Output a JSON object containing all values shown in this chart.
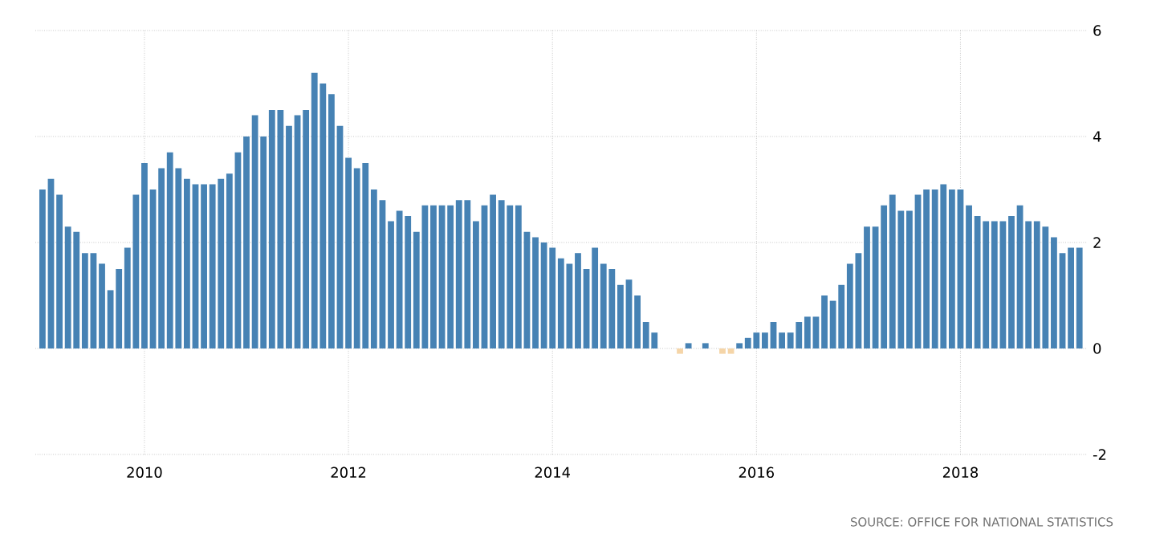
{
  "chart_data": {
    "type": "bar",
    "x": [
      "2009-01",
      "2009-02",
      "2009-03",
      "2009-04",
      "2009-05",
      "2009-06",
      "2009-07",
      "2009-08",
      "2009-09",
      "2009-10",
      "2009-11",
      "2009-12",
      "2010-01",
      "2010-02",
      "2010-03",
      "2010-04",
      "2010-05",
      "2010-06",
      "2010-07",
      "2010-08",
      "2010-09",
      "2010-10",
      "2010-11",
      "2010-12",
      "2011-01",
      "2011-02",
      "2011-03",
      "2011-04",
      "2011-05",
      "2011-06",
      "2011-07",
      "2011-08",
      "2011-09",
      "2011-10",
      "2011-11",
      "2011-12",
      "2012-01",
      "2012-02",
      "2012-03",
      "2012-04",
      "2012-05",
      "2012-06",
      "2012-07",
      "2012-08",
      "2012-09",
      "2012-10",
      "2012-11",
      "2012-12",
      "2013-01",
      "2013-02",
      "2013-03",
      "2013-04",
      "2013-05",
      "2013-06",
      "2013-07",
      "2013-08",
      "2013-09",
      "2013-10",
      "2013-11",
      "2013-12",
      "2014-01",
      "2014-02",
      "2014-03",
      "2014-04",
      "2014-05",
      "2014-06",
      "2014-07",
      "2014-08",
      "2014-09",
      "2014-10",
      "2014-11",
      "2014-12",
      "2015-01",
      "2015-02",
      "2015-03",
      "2015-04",
      "2015-05",
      "2015-06",
      "2015-07",
      "2015-08",
      "2015-09",
      "2015-10",
      "2015-11",
      "2015-12",
      "2016-01",
      "2016-02",
      "2016-03",
      "2016-04",
      "2016-05",
      "2016-06",
      "2016-07",
      "2016-08",
      "2016-09",
      "2016-10",
      "2016-11",
      "2016-12",
      "2017-01",
      "2017-02",
      "2017-03",
      "2017-04",
      "2017-05",
      "2017-06",
      "2017-07",
      "2017-08",
      "2017-09",
      "2017-10",
      "2017-11",
      "2017-12",
      "2018-01",
      "2018-02",
      "2018-03",
      "2018-04",
      "2018-05",
      "2018-06",
      "2018-07",
      "2018-08",
      "2018-09",
      "2018-10",
      "2018-11",
      "2018-12",
      "2019-01",
      "2019-02",
      "2019-03"
    ],
    "values": [
      3.0,
      3.2,
      2.9,
      2.3,
      2.2,
      1.8,
      1.8,
      1.6,
      1.1,
      1.5,
      1.9,
      2.9,
      3.5,
      3.0,
      3.4,
      3.7,
      3.4,
      3.2,
      3.1,
      3.1,
      3.1,
      3.2,
      3.3,
      3.7,
      4.0,
      4.4,
      4.0,
      4.5,
      4.5,
      4.2,
      4.4,
      4.5,
      5.2,
      5.0,
      4.8,
      4.2,
      3.6,
      3.4,
      3.5,
      3.0,
      2.8,
      2.4,
      2.6,
      2.5,
      2.2,
      2.7,
      2.7,
      2.7,
      2.7,
      2.8,
      2.8,
      2.4,
      2.7,
      2.9,
      2.8,
      2.7,
      2.7,
      2.2,
      2.1,
      2.0,
      1.9,
      1.7,
      1.6,
      1.8,
      1.5,
      1.9,
      1.6,
      1.5,
      1.2,
      1.3,
      1.0,
      0.5,
      0.3,
      0.0,
      0.0,
      -0.1,
      0.1,
      0.0,
      0.1,
      0.0,
      -0.1,
      -0.1,
      0.1,
      0.2,
      0.3,
      0.3,
      0.5,
      0.3,
      0.3,
      0.5,
      0.6,
      0.6,
      1.0,
      0.9,
      1.2,
      1.6,
      1.8,
      2.3,
      2.3,
      2.7,
      2.9,
      2.6,
      2.6,
      2.9,
      3.0,
      3.0,
      3.1,
      3.0,
      3.0,
      2.7,
      2.5,
      2.4,
      2.4,
      2.4,
      2.5,
      2.7,
      2.4,
      2.4,
      2.3,
      2.1,
      1.8,
      1.9,
      1.9
    ],
    "colors": [
      "#4682b4",
      "#4682b4",
      "#4682b4",
      "#4682b4",
      "#4682b4",
      "#4682b4",
      "#4682b4",
      "#4682b4",
      "#4682b4",
      "#4682b4",
      "#4682b4",
      "#4682b4",
      "#4682b4",
      "#4682b4",
      "#4682b4",
      "#4682b4",
      "#4682b4",
      "#4682b4",
      "#4682b4",
      "#4682b4",
      "#4682b4",
      "#4682b4",
      "#4682b4",
      "#4682b4",
      "#4682b4",
      "#4682b4",
      "#4682b4",
      "#4682b4",
      "#4682b4",
      "#4682b4",
      "#4682b4",
      "#4682b4",
      "#4682b4",
      "#4682b4",
      "#4682b4",
      "#4682b4",
      "#4682b4",
      "#4682b4",
      "#4682b4",
      "#4682b4",
      "#4682b4",
      "#4682b4",
      "#4682b4",
      "#4682b4",
      "#4682b4",
      "#4682b4",
      "#4682b4",
      "#4682b4",
      "#4682b4",
      "#4682b4",
      "#4682b4",
      "#4682b4",
      "#4682b4",
      "#4682b4",
      "#4682b4",
      "#4682b4",
      "#4682b4",
      "#4682b4",
      "#4682b4",
      "#4682b4",
      "#4682b4",
      "#4682b4",
      "#4682b4",
      "#4682b4",
      "#4682b4",
      "#4682b4",
      "#4682b4",
      "#4682b4",
      "#4682b4",
      "#4682b4",
      "#4682b4",
      "#4682b4",
      "#4682b4",
      "#4682b4",
      "#4682b4",
      "#f5d5a8",
      "#4682b4",
      "#4682b4",
      "#4682b4",
      "#4682b4",
      "#f5d5a8",
      "#f5d5a8",
      "#4682b4",
      "#4682b4",
      "#4682b4",
      "#4682b4",
      "#4682b4",
      "#4682b4",
      "#4682b4",
      "#4682b4",
      "#4682b4",
      "#4682b4",
      "#4682b4",
      "#4682b4",
      "#4682b4",
      "#4682b4",
      "#4682b4",
      "#4682b4",
      "#4682b4",
      "#4682b4",
      "#4682b4",
      "#4682b4",
      "#4682b4",
      "#4682b4",
      "#4682b4",
      "#4682b4",
      "#4682b4",
      "#4682b4",
      "#4682b4",
      "#4682b4",
      "#4682b4",
      "#4682b4",
      "#4682b4",
      "#4682b4",
      "#4682b4",
      "#4682b4",
      "#4682b4",
      "#4682b4",
      "#4682b4",
      "#4682b4",
      "#4682b4",
      "#4682b4",
      "#4682b4"
    ],
    "xlim": [
      "2008-12-06",
      "2019-03-28"
    ],
    "xticks": [
      "2010",
      "2012",
      "2014",
      "2016",
      "2018"
    ],
    "ylim": [
      -2,
      6
    ],
    "yticks": [
      -2,
      0,
      2,
      4,
      6
    ],
    "grid": true,
    "annotations": [
      "SOURCE: OFFICE FOR NATIONAL STATISTICS"
    ]
  }
}
